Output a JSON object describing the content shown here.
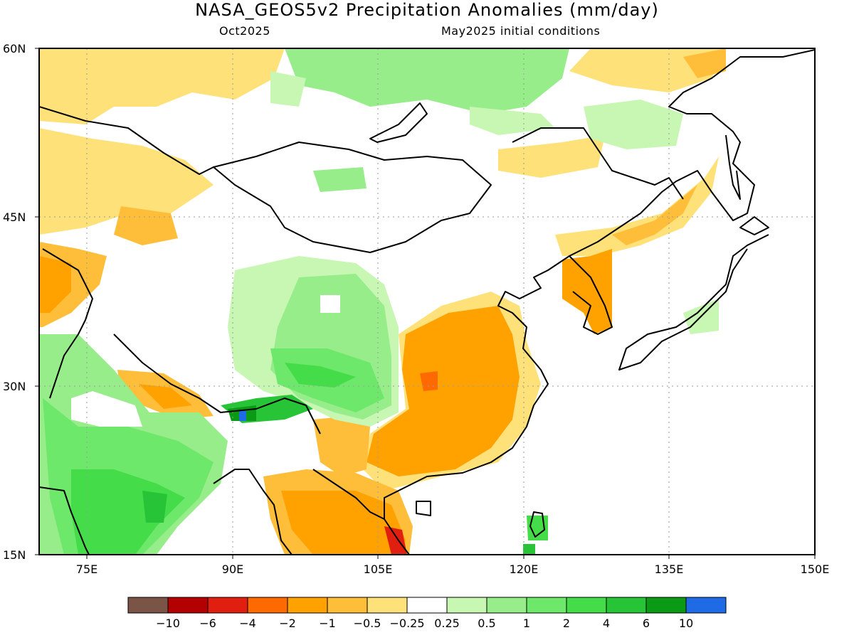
{
  "title": "NASA_GEOS5v2 Precipitation Anomalies (mm/day)",
  "subtitle_left": "Oct2025",
  "subtitle_right": "May2025 initial conditions",
  "lat_ticks": [
    "60N",
    "45N",
    "30N",
    "15N"
  ],
  "lon_ticks": [
    "75E",
    "90E",
    "105E",
    "120E",
    "135E",
    "150E"
  ],
  "colorbar": {
    "colors": [
      "#7a5446",
      "#b30000",
      "#e01f10",
      "#ff6a00",
      "#ffa200",
      "#ffbe3a",
      "#ffe17a",
      "#ffffff",
      "#c7f7b3",
      "#97ed8a",
      "#6de86a",
      "#45dc4a",
      "#28c437",
      "#0b9a15",
      "#1f6be6"
    ],
    "labels": [
      "-10",
      "-6",
      "-4",
      "-2",
      "-1",
      "-0.5",
      "-0.25",
      "0.25",
      "0.5",
      "1",
      "2",
      "4",
      "6",
      "10"
    ]
  },
  "palette": {
    "orange": "#ffa200",
    "light_orange": "#ffbe3a",
    "yellow": "#ffe17a",
    "light_green": "#c7f7b3",
    "green": "#97ed8a",
    "mid_green": "#6de86a",
    "bright_green": "#45dc4a",
    "dark_green": "#0b9a15",
    "red_orange": "#ff6a00",
    "red": "#e01f10",
    "blue": "#1f6be6"
  }
}
